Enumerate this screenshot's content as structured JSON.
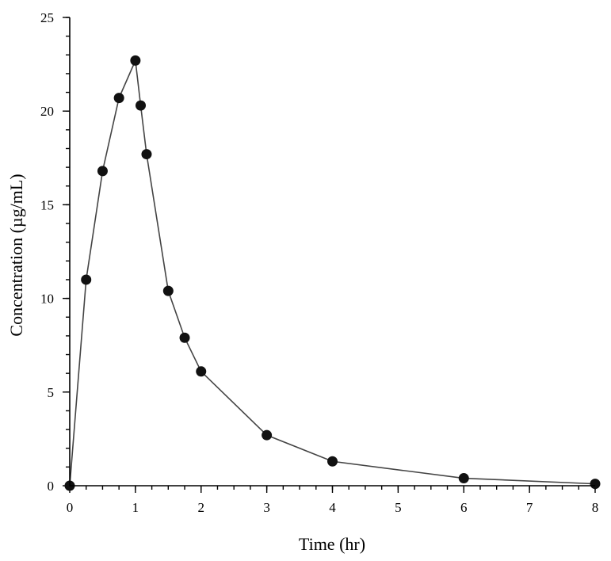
{
  "chart_data": {
    "type": "line",
    "title": "",
    "xlabel": "Time (hr)",
    "ylabel": "Concentration (µg/mL)",
    "xlim": [
      0,
      8
    ],
    "ylim": [
      0,
      25
    ],
    "x_ticks": [
      "0",
      "1",
      "2",
      "3",
      "4",
      "5",
      "6",
      "7",
      "8"
    ],
    "y_ticks": [
      "0",
      "5",
      "10",
      "15",
      "20",
      "25"
    ],
    "x_minor_step": 0.25,
    "y_minor_step": 1,
    "grid": false,
    "series": [
      {
        "x": [
          0,
          0.25,
          0.5,
          0.75,
          1.0,
          1.08,
          1.17,
          1.5,
          1.75,
          2,
          3,
          4,
          6,
          8
        ],
        "y": [
          0,
          11.0,
          16.8,
          20.7,
          22.7,
          20.3,
          17.7,
          10.4,
          7.9,
          6.1,
          2.7,
          1.3,
          0.4,
          0.1
        ]
      }
    ]
  }
}
